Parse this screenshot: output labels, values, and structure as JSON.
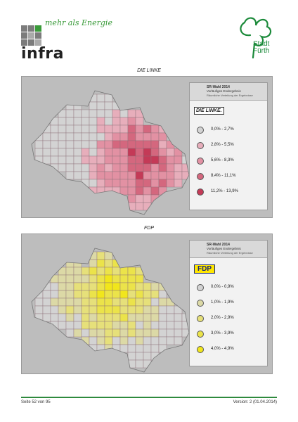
{
  "header": {
    "infra_tagline": "mehr als Energie",
    "infra_name": "infra",
    "city_word1": "Stadt",
    "city_word2": "Fürth"
  },
  "sections": [
    {
      "title": "DIE LINKE",
      "legend_title": "SR-Wahl 2014",
      "legend_subtitle": "Vorläufiges Endergebnis",
      "legend_note": "Räumliche Verteilung der Ergebnisse",
      "party_label": "DIE LINKE.",
      "classes": [
        {
          "label": "0,0% - 2,7%",
          "color": "#d3d3d3"
        },
        {
          "label": "2,8% - 5,5%",
          "color": "#e7aebb"
        },
        {
          "label": "5,6% - 8,3%",
          "color": "#e291a3"
        },
        {
          "label": "8,4% - 11,1%",
          "color": "#d4677e"
        },
        {
          "label": "11,2% - 13,9%",
          "color": "#c43a57"
        }
      ]
    },
    {
      "title": "FDP",
      "legend_title": "SR-Wahl 2014",
      "legend_subtitle": "Vorläufiges Endergebnis",
      "legend_note": "Räumliche Verteilung der Ergebnisse",
      "party_label": "FDP",
      "classes": [
        {
          "label": "0,0% - 0,9%",
          "color": "#d3d3d3"
        },
        {
          "label": "1,0% - 1,9%",
          "color": "#dcd9a6"
        },
        {
          "label": "2,0% - 2,9%",
          "color": "#e6e07a"
        },
        {
          "label": "3,0% - 3,9%",
          "color": "#ebe34a"
        },
        {
          "label": "4,0% - 4,9%",
          "color": "#f1e61c"
        }
      ]
    }
  ],
  "footer": {
    "page": "Seite 52 von 95",
    "version": "Version: 2 (01.04.2014)"
  }
}
